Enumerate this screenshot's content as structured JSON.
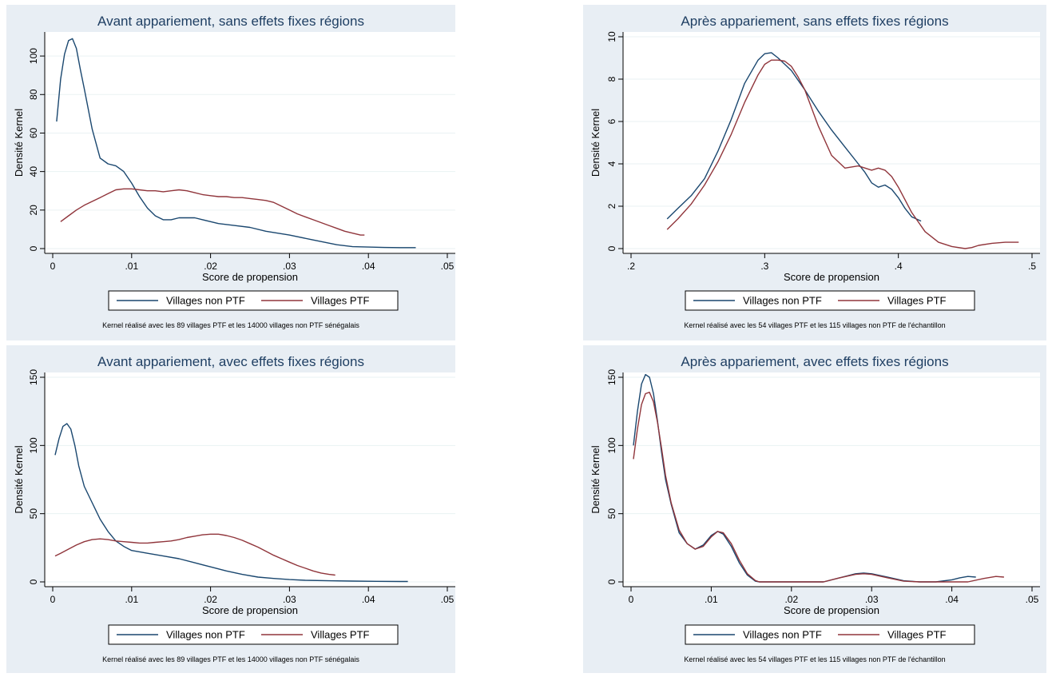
{
  "chart_data": [
    {
      "type": "line",
      "title": "Avant appariement, sans effets fixes régions",
      "xlabel": "Score de propension",
      "ylabel": "Densité Kernel",
      "xlim": [
        0,
        0.05
      ],
      "ylim": [
        0,
        110
      ],
      "xticks": [
        0,
        0.01,
        0.02,
        0.03,
        0.04,
        0.05
      ],
      "xtick_labels": [
        "0",
        ".01",
        ".02",
        ".03",
        ".04",
        ".05"
      ],
      "yticks": [
        0,
        20,
        40,
        60,
        80,
        100
      ],
      "ytick_labels": [
        "0",
        "20",
        "40",
        "60",
        "80",
        "100"
      ],
      "grid": true,
      "legend_position": "bottom",
      "note": "Kernel réalisé avec les 89 villages PTF et les 14000 villages non PTF sénégalais",
      "series": [
        {
          "name": "Villages non PTF",
          "color": "#1a476f",
          "x": [
            0.0005,
            0.001,
            0.0015,
            0.002,
            0.0025,
            0.003,
            0.0035,
            0.004,
            0.005,
            0.006,
            0.007,
            0.008,
            0.009,
            0.01,
            0.011,
            0.012,
            0.013,
            0.014,
            0.015,
            0.016,
            0.017,
            0.018,
            0.019,
            0.02,
            0.021,
            0.023,
            0.025,
            0.027,
            0.03,
            0.033,
            0.036,
            0.038,
            0.04,
            0.042,
            0.044,
            0.046
          ],
          "y": [
            66,
            88,
            101,
            108,
            109,
            104,
            93,
            83,
            62,
            47,
            44,
            43,
            40,
            34,
            27,
            21,
            17,
            15,
            15,
            16,
            16,
            16,
            15,
            14,
            13,
            12,
            11,
            9,
            7,
            4.5,
            2,
            1,
            0.8,
            0.6,
            0.5,
            0.5
          ]
        },
        {
          "name": "Villages PTF",
          "color": "#90353b",
          "x": [
            0.001,
            0.002,
            0.003,
            0.004,
            0.005,
            0.006,
            0.007,
            0.008,
            0.009,
            0.01,
            0.011,
            0.012,
            0.013,
            0.014,
            0.015,
            0.016,
            0.017,
            0.018,
            0.019,
            0.02,
            0.021,
            0.022,
            0.023,
            0.024,
            0.025,
            0.026,
            0.027,
            0.028,
            0.029,
            0.03,
            0.031,
            0.032,
            0.033,
            0.034,
            0.035,
            0.036,
            0.037,
            0.038,
            0.039,
            0.0395
          ],
          "y": [
            14,
            17,
            20,
            22.5,
            24.5,
            26.5,
            28.5,
            30.5,
            31,
            31,
            30.5,
            30,
            30,
            29.5,
            30,
            30.5,
            30,
            29,
            28,
            27.5,
            27,
            27,
            26.5,
            26.5,
            26,
            25.5,
            25,
            24,
            22,
            20,
            18,
            16.5,
            15,
            13.5,
            12,
            10.5,
            9,
            8,
            7,
            7
          ]
        }
      ]
    },
    {
      "type": "line",
      "title": "Après appariement, sans effets fixes régions",
      "xlabel": "Score de propension",
      "ylabel": "Densité Kernel",
      "xlim": [
        0.2,
        0.5
      ],
      "ylim": [
        0,
        10
      ],
      "xticks": [
        0.2,
        0.3,
        0.4,
        0.5
      ],
      "xtick_labels": [
        ".2",
        ".3",
        ".4",
        ".5"
      ],
      "yticks": [
        0,
        2,
        4,
        6,
        8,
        10
      ],
      "ytick_labels": [
        "0",
        "2",
        "4",
        "6",
        "8",
        "10"
      ],
      "grid": true,
      "legend_position": "bottom",
      "note": "Kernel réalisé avec les 54 villages PTF et les 115 villages non PTF de l'échantillon",
      "series": [
        {
          "name": "Villages non PTF",
          "color": "#1a476f",
          "x": [
            0.227,
            0.235,
            0.245,
            0.255,
            0.265,
            0.275,
            0.285,
            0.295,
            0.3,
            0.305,
            0.31,
            0.32,
            0.33,
            0.34,
            0.35,
            0.36,
            0.37,
            0.375,
            0.38,
            0.385,
            0.39,
            0.395,
            0.4,
            0.405,
            0.41,
            0.417
          ],
          "y": [
            1.4,
            1.9,
            2.5,
            3.3,
            4.6,
            6.1,
            7.8,
            8.9,
            9.2,
            9.25,
            9.0,
            8.4,
            7.5,
            6.5,
            5.6,
            4.8,
            4.0,
            3.6,
            3.1,
            2.9,
            3.0,
            2.8,
            2.4,
            1.9,
            1.5,
            1.3
          ]
        },
        {
          "name": "Villages PTF",
          "color": "#90353b",
          "x": [
            0.227,
            0.235,
            0.245,
            0.255,
            0.265,
            0.275,
            0.285,
            0.295,
            0.3,
            0.305,
            0.31,
            0.315,
            0.32,
            0.325,
            0.33,
            0.34,
            0.35,
            0.36,
            0.37,
            0.38,
            0.385,
            0.39,
            0.395,
            0.4,
            0.41,
            0.42,
            0.43,
            0.44,
            0.45,
            0.455,
            0.46,
            0.47,
            0.48,
            0.49
          ],
          "y": [
            0.9,
            1.4,
            2.1,
            3.0,
            4.1,
            5.4,
            6.9,
            8.2,
            8.7,
            8.9,
            8.9,
            8.85,
            8.6,
            8.1,
            7.5,
            5.8,
            4.4,
            3.8,
            3.9,
            3.7,
            3.8,
            3.7,
            3.4,
            2.9,
            1.7,
            0.8,
            0.3,
            0.1,
            0.0,
            0.05,
            0.15,
            0.25,
            0.3,
            0.3
          ]
        }
      ]
    },
    {
      "type": "line",
      "title": "Avant appariement, avec effets fixes régions",
      "xlabel": "Score de propension",
      "ylabel": "Densité Kernel",
      "xlim": [
        0,
        0.05
      ],
      "ylim": [
        0,
        150
      ],
      "xticks": [
        0,
        0.01,
        0.02,
        0.03,
        0.04,
        0.05
      ],
      "xtick_labels": [
        "0",
        ".01",
        ".02",
        ".03",
        ".04",
        ".05"
      ],
      "yticks": [
        0,
        50,
        100,
        150
      ],
      "ytick_labels": [
        "0",
        "50",
        "100",
        "150"
      ],
      "grid": true,
      "legend_position": "bottom",
      "note": "Kernel réalisé avec les 89 villages PTF et les 14000 villages non PTF sénégalais",
      "series": [
        {
          "name": "Villages non PTF",
          "color": "#1a476f",
          "x": [
            0.0003,
            0.0008,
            0.0013,
            0.0018,
            0.0023,
            0.0028,
            0.0033,
            0.004,
            0.005,
            0.006,
            0.007,
            0.008,
            0.009,
            0.01,
            0.012,
            0.014,
            0.016,
            0.018,
            0.02,
            0.022,
            0.024,
            0.026,
            0.028,
            0.03,
            0.032,
            0.035,
            0.038,
            0.041,
            0.044,
            0.045
          ],
          "y": [
            93,
            105,
            114,
            116,
            112,
            100,
            85,
            70,
            58,
            46,
            37,
            30,
            26,
            23,
            21,
            19,
            17,
            14,
            11,
            8,
            5.5,
            3.5,
            2.5,
            1.7,
            1.2,
            0.8,
            0.6,
            0.4,
            0.3,
            0.3
          ]
        },
        {
          "name": "Villages PTF",
          "color": "#90353b",
          "x": [
            0.0003,
            0.001,
            0.002,
            0.003,
            0.004,
            0.005,
            0.006,
            0.007,
            0.008,
            0.009,
            0.01,
            0.011,
            0.012,
            0.013,
            0.014,
            0.015,
            0.016,
            0.017,
            0.018,
            0.019,
            0.02,
            0.021,
            0.022,
            0.023,
            0.024,
            0.025,
            0.026,
            0.027,
            0.028,
            0.029,
            0.03,
            0.031,
            0.032,
            0.033,
            0.034,
            0.035,
            0.0358
          ],
          "y": [
            19,
            21,
            24,
            27,
            29.5,
            31,
            31.5,
            31,
            30,
            29.5,
            29,
            28.5,
            28.5,
            29,
            29.5,
            30,
            31,
            32.5,
            33.5,
            34.5,
            35,
            35,
            34,
            32.5,
            30.5,
            28,
            25.5,
            22.5,
            19.5,
            17,
            14.5,
            12,
            10,
            8,
            6.5,
            5.5,
            5
          ]
        }
      ]
    },
    {
      "type": "line",
      "title": "Après appariement, avec effets fixes régions",
      "xlabel": "Score de propension",
      "ylabel": "Densité Kernel",
      "xlim": [
        0,
        0.05
      ],
      "ylim": [
        0,
        150
      ],
      "xticks": [
        0,
        0.01,
        0.02,
        0.03,
        0.04,
        0.05
      ],
      "xtick_labels": [
        "0",
        ".01",
        ".02",
        ".03",
        ".04",
        ".05"
      ],
      "yticks": [
        0,
        50,
        100,
        150
      ],
      "ytick_labels": [
        "0",
        "50",
        "100",
        "150"
      ],
      "grid": true,
      "legend_position": "bottom",
      "note": "Kernel réalisé avec les 54 villages PTF et les 115 villages non PTF de l'échantillon",
      "series": [
        {
          "name": "Villages non PTF",
          "color": "#1a476f",
          "x": [
            0.0003,
            0.0008,
            0.0013,
            0.0018,
            0.0023,
            0.0028,
            0.0033,
            0.0038,
            0.0043,
            0.005,
            0.006,
            0.007,
            0.008,
            0.009,
            0.01,
            0.0108,
            0.0115,
            0.0125,
            0.0135,
            0.0145,
            0.0155,
            0.016,
            0.02,
            0.024,
            0.026,
            0.028,
            0.029,
            0.03,
            0.032,
            0.034,
            0.036,
            0.038,
            0.04,
            0.041,
            0.042,
            0.043
          ],
          "y": [
            100,
            125,
            145,
            152,
            150,
            138,
            118,
            95,
            75,
            57,
            36,
            28,
            24,
            27,
            34,
            37,
            35,
            26,
            14,
            5,
            0.5,
            0,
            0,
            0,
            3,
            6,
            6.5,
            6,
            3.5,
            0.8,
            0,
            0,
            1.5,
            3,
            4,
            3.5
          ]
        },
        {
          "name": "Villages PTF",
          "color": "#90353b",
          "x": [
            0.0003,
            0.0008,
            0.0013,
            0.0018,
            0.0023,
            0.0028,
            0.0033,
            0.0038,
            0.0043,
            0.005,
            0.006,
            0.007,
            0.008,
            0.009,
            0.01,
            0.0108,
            0.0115,
            0.0125,
            0.0135,
            0.0145,
            0.0155,
            0.016,
            0.02,
            0.024,
            0.026,
            0.028,
            0.029,
            0.03,
            0.032,
            0.034,
            0.036,
            0.038,
            0.04,
            0.042,
            0.044,
            0.0455,
            0.0465
          ],
          "y": [
            90,
            112,
            130,
            138,
            139,
            132,
            117,
            98,
            78,
            58,
            38,
            28,
            24,
            26,
            33,
            37,
            36,
            28,
            16,
            6,
            1,
            0,
            0,
            0,
            3,
            5.5,
            6,
            5.5,
            3,
            0.5,
            0,
            0,
            0,
            0,
            2.5,
            4,
            3.5
          ]
        }
      ]
    }
  ]
}
